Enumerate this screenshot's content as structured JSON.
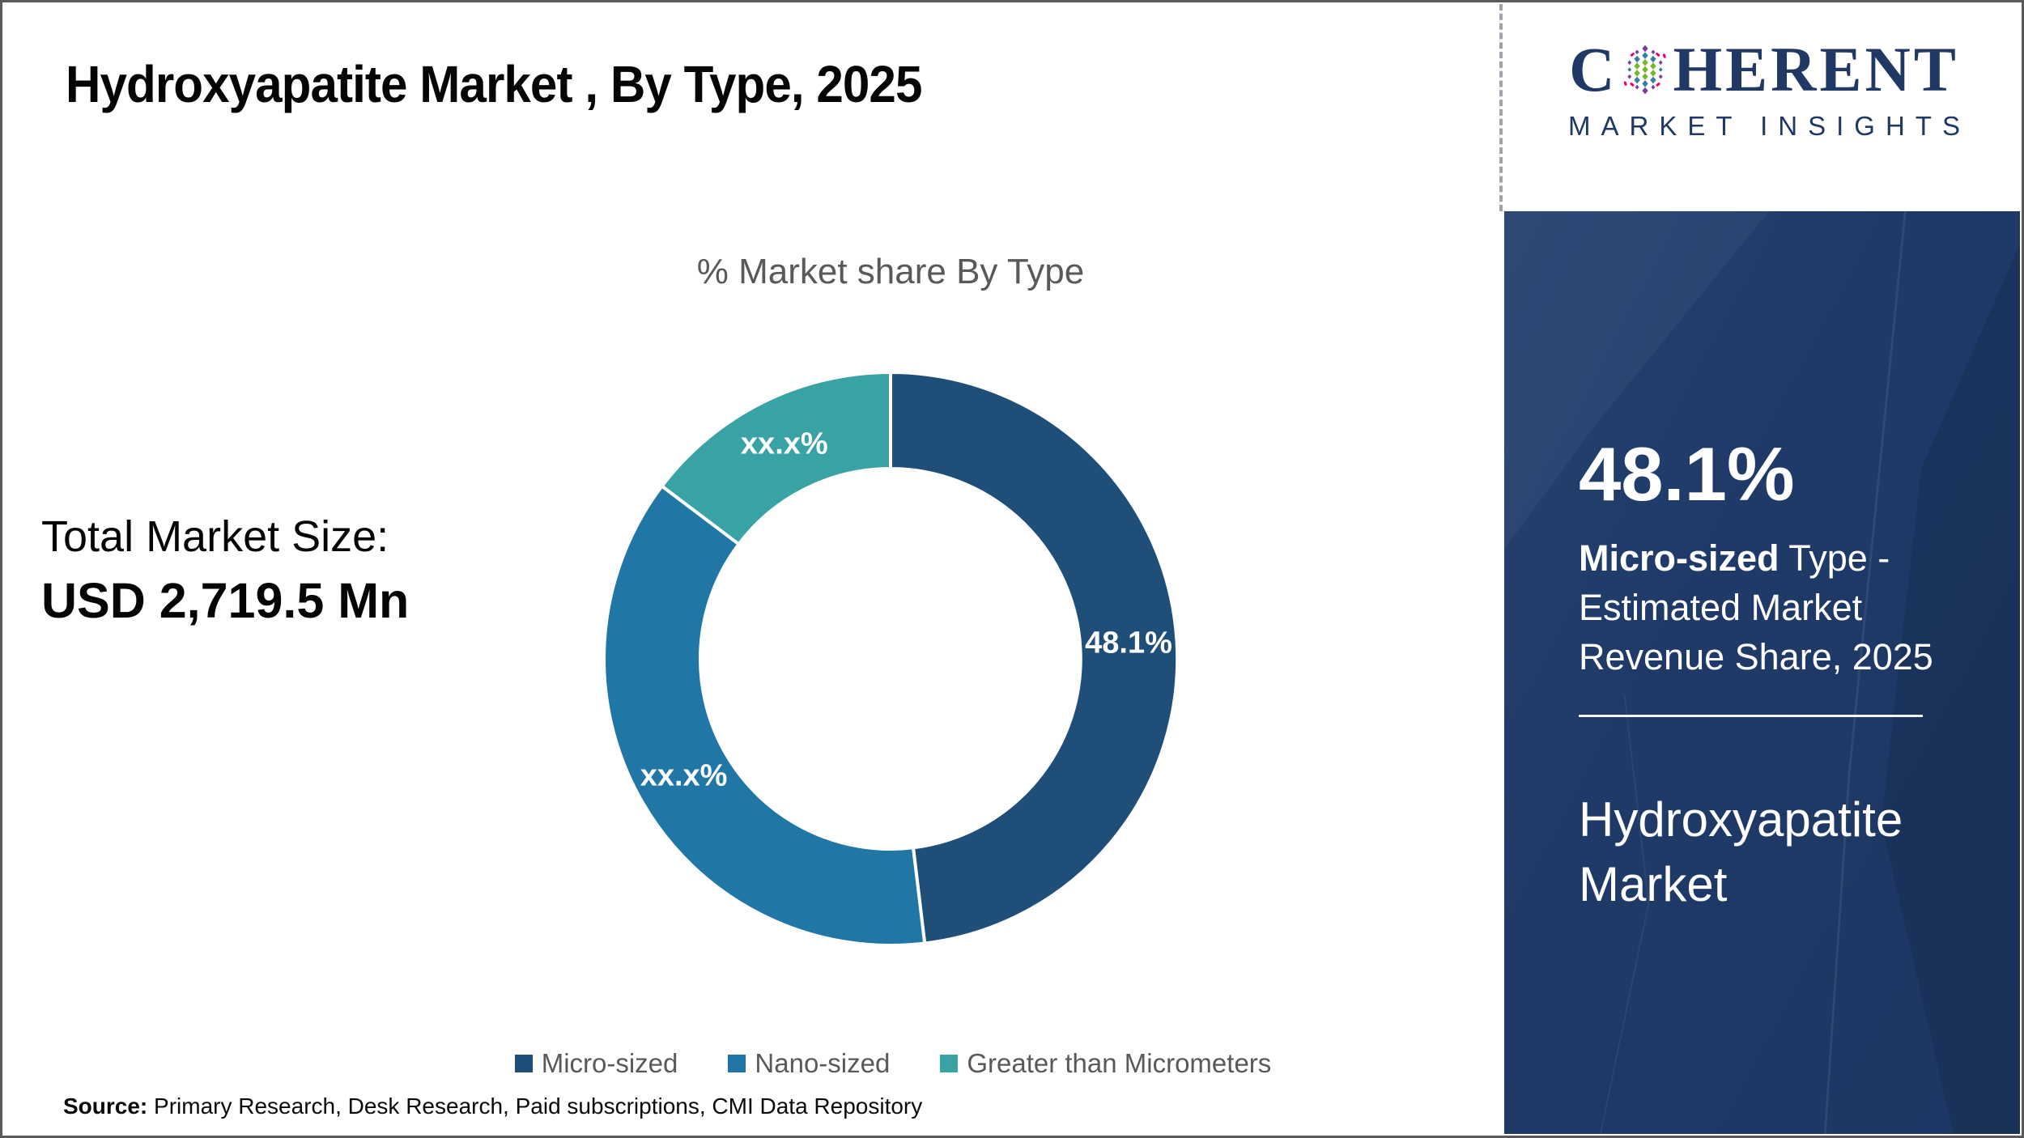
{
  "header": {
    "title": "Hydroxyapatite Market , By Type, 2025"
  },
  "logo": {
    "text_before_globe": "C",
    "text_after_globe": "HERENT",
    "subtitle": "MARKET INSIGHTS",
    "brand_color": "#1F3864"
  },
  "main": {
    "total_market_label": "Total Market Size:",
    "total_market_value": "USD 2,719.5 Mn",
    "source_label": "Source:",
    "source_text": " Primary Research, Desk Research, Paid subscriptions, CMI Data Repository"
  },
  "chart_data": {
    "type": "pie",
    "variant": "donut",
    "title": "% Market share By Type",
    "inner_radius_ratio": 0.664,
    "start_angle_deg": 0,
    "direction": "clockwise",
    "legend_position": "bottom",
    "label_color": "#FFFFFF",
    "segments": [
      {
        "label": "Micro-sized",
        "value": 48.1,
        "display_label": "48.1%",
        "color": "#1F4E79"
      },
      {
        "label": "Nano-sized",
        "value": 37.2,
        "display_label": "xx.x%",
        "color": "#2077A6"
      },
      {
        "label": "Greater than Micrometers",
        "value": 14.7,
        "display_label": "xx.x%",
        "color": "#38A2A4"
      }
    ]
  },
  "sidebar": {
    "background": "#1F3A68",
    "stat_value": "48.1%",
    "stat_highlight": "Micro-sized",
    "stat_description": " Type - Estimated Market Revenue Share, 2025",
    "market_title": "Hydroxyapatite Market"
  }
}
